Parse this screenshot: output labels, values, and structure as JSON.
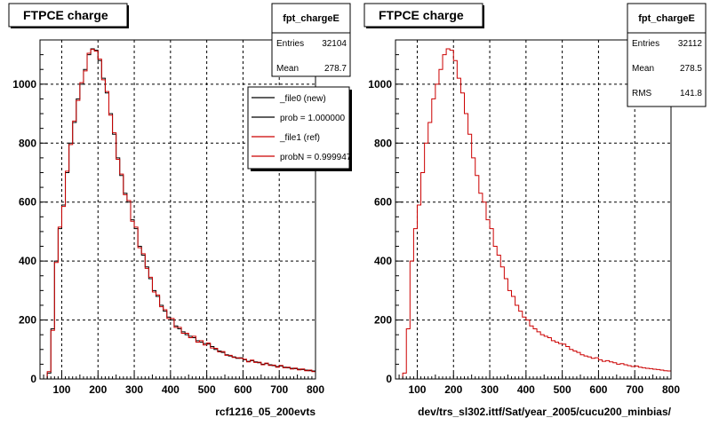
{
  "colors": {
    "new": "#000000",
    "ref": "#cc0000",
    "grid": "#000000",
    "frame": "#000000"
  },
  "chart_data": [
    {
      "type": "line",
      "title": "FTPCE charge",
      "xlabel": "rcf1216_05_200evts",
      "ylabel": "",
      "xlim": [
        40,
        800
      ],
      "ylim": [
        0,
        1150
      ],
      "xticks": [
        100,
        200,
        300,
        400,
        500,
        600,
        700,
        800
      ],
      "yticks": [
        0,
        200,
        400,
        600,
        800,
        1000
      ],
      "grid": true,
      "stats": {
        "name": "fpt_chargeE",
        "rows": [
          {
            "label": "Entries",
            "value": "32104"
          },
          {
            "label": "Mean",
            "value": "278.7"
          }
        ]
      },
      "legend": {
        "placement": "top-right",
        "entries": [
          {
            "label": "_file0 (new)",
            "color": "#000000"
          },
          {
            "label": "prob = 1.000000",
            "color": "#000000"
          },
          {
            "label": "_file1 (ref)",
            "color": "#cc0000"
          },
          {
            "label": "probN = 0.999947",
            "color": "#cc0000"
          }
        ]
      },
      "footer": "",
      "series": [
        {
          "name": "_file0 (new)",
          "color": "#000000",
          "bin_width": 10,
          "x": [
            40,
            50,
            60,
            70,
            80,
            90,
            100,
            110,
            120,
            130,
            140,
            150,
            160,
            170,
            180,
            190,
            200,
            210,
            220,
            230,
            240,
            250,
            260,
            270,
            280,
            290,
            300,
            310,
            320,
            330,
            340,
            350,
            360,
            370,
            380,
            390,
            400,
            410,
            420,
            430,
            440,
            450,
            460,
            470,
            480,
            490,
            500,
            510,
            520,
            530,
            540,
            550,
            560,
            570,
            580,
            590,
            600,
            610,
            620,
            630,
            640,
            650,
            660,
            670,
            680,
            690,
            700,
            710,
            720,
            730,
            740,
            750,
            760,
            770,
            780,
            790
          ],
          "values": [
            0,
            0,
            20,
            170,
            400,
            510,
            590,
            700,
            800,
            870,
            950,
            1000,
            1050,
            1100,
            1120,
            1115,
            1080,
            1020,
            970,
            900,
            830,
            750,
            690,
            630,
            600,
            540,
            510,
            450,
            420,
            380,
            340,
            300,
            280,
            250,
            230,
            210,
            200,
            180,
            170,
            160,
            150,
            145,
            140,
            130,
            125,
            120,
            118,
            110,
            100,
            95,
            90,
            82,
            78,
            75,
            70,
            72,
            65,
            60,
            62,
            58,
            55,
            50,
            52,
            48,
            45,
            42,
            44,
            40,
            38,
            36,
            35,
            33,
            32,
            30,
            28,
            27
          ]
        },
        {
          "name": "_file1 (ref)",
          "color": "#cc0000",
          "bin_width": 10,
          "x": [
            40,
            50,
            60,
            70,
            80,
            90,
            100,
            110,
            120,
            130,
            140,
            150,
            160,
            170,
            180,
            190,
            200,
            210,
            220,
            230,
            240,
            250,
            260,
            270,
            280,
            290,
            300,
            310,
            320,
            330,
            340,
            350,
            360,
            370,
            380,
            390,
            400,
            410,
            420,
            430,
            440,
            450,
            460,
            470,
            480,
            490,
            500,
            510,
            520,
            530,
            540,
            550,
            560,
            570,
            580,
            590,
            600,
            610,
            620,
            630,
            640,
            650,
            660,
            670,
            680,
            690,
            700,
            710,
            720,
            730,
            740,
            750,
            760,
            770,
            780,
            790
          ],
          "values": [
            0,
            0,
            25,
            165,
            395,
            515,
            585,
            705,
            795,
            875,
            945,
            1005,
            1045,
            1105,
            1118,
            1112,
            1085,
            1015,
            975,
            895,
            835,
            745,
            695,
            625,
            605,
            535,
            515,
            445,
            425,
            375,
            345,
            295,
            285,
            245,
            235,
            205,
            205,
            175,
            175,
            155,
            155,
            140,
            145,
            125,
            130,
            115,
            122,
            105,
            104,
            92,
            93,
            80,
            80,
            73,
            72,
            70,
            67,
            58,
            64,
            56,
            57,
            48,
            54,
            46,
            47,
            40,
            46,
            38,
            40,
            34,
            37,
            31,
            34,
            28,
            30,
            25
          ]
        }
      ]
    },
    {
      "type": "line",
      "title": "FTPCE charge",
      "xlabel": "dev/trs_sl302.ittf/Sat/year_2005/cucu200_minbias/",
      "ylabel": "",
      "xlim": [
        40,
        800
      ],
      "ylim": [
        0,
        1150
      ],
      "xticks": [
        100,
        200,
        300,
        400,
        500,
        600,
        700,
        800
      ],
      "yticks": [
        0,
        200,
        400,
        600,
        800,
        1000
      ],
      "grid": true,
      "stats": {
        "name": "fpt_chargeE",
        "rows": [
          {
            "label": "Entries",
            "value": "32112"
          },
          {
            "label": "Mean",
            "value": "278.5"
          },
          {
            "label": "RMS",
            "value": "141.8"
          }
        ]
      },
      "legend": null,
      "footer": "",
      "series": [
        {
          "name": "",
          "color": "#cc0000",
          "bin_width": 10,
          "x": [
            40,
            50,
            60,
            70,
            80,
            90,
            100,
            110,
            120,
            130,
            140,
            150,
            160,
            170,
            180,
            190,
            200,
            210,
            220,
            230,
            240,
            250,
            260,
            270,
            280,
            290,
            300,
            310,
            320,
            330,
            340,
            350,
            360,
            370,
            380,
            390,
            400,
            410,
            420,
            430,
            440,
            450,
            460,
            470,
            480,
            490,
            500,
            510,
            520,
            530,
            540,
            550,
            560,
            570,
            580,
            590,
            600,
            610,
            620,
            630,
            640,
            650,
            660,
            670,
            680,
            690,
            700,
            710,
            720,
            730,
            740,
            750,
            760,
            770,
            780,
            790
          ],
          "values": [
            0,
            0,
            20,
            170,
            400,
            510,
            590,
            700,
            800,
            870,
            950,
            1000,
            1050,
            1100,
            1120,
            1115,
            1080,
            1020,
            970,
            900,
            830,
            750,
            690,
            630,
            600,
            540,
            510,
            450,
            420,
            380,
            340,
            300,
            280,
            250,
            230,
            210,
            200,
            180,
            170,
            160,
            150,
            145,
            140,
            130,
            125,
            120,
            118,
            110,
            100,
            95,
            90,
            82,
            78,
            75,
            70,
            72,
            65,
            60,
            62,
            58,
            55,
            50,
            52,
            48,
            45,
            42,
            44,
            40,
            38,
            36,
            35,
            33,
            32,
            30,
            28,
            27
          ]
        }
      ]
    }
  ]
}
